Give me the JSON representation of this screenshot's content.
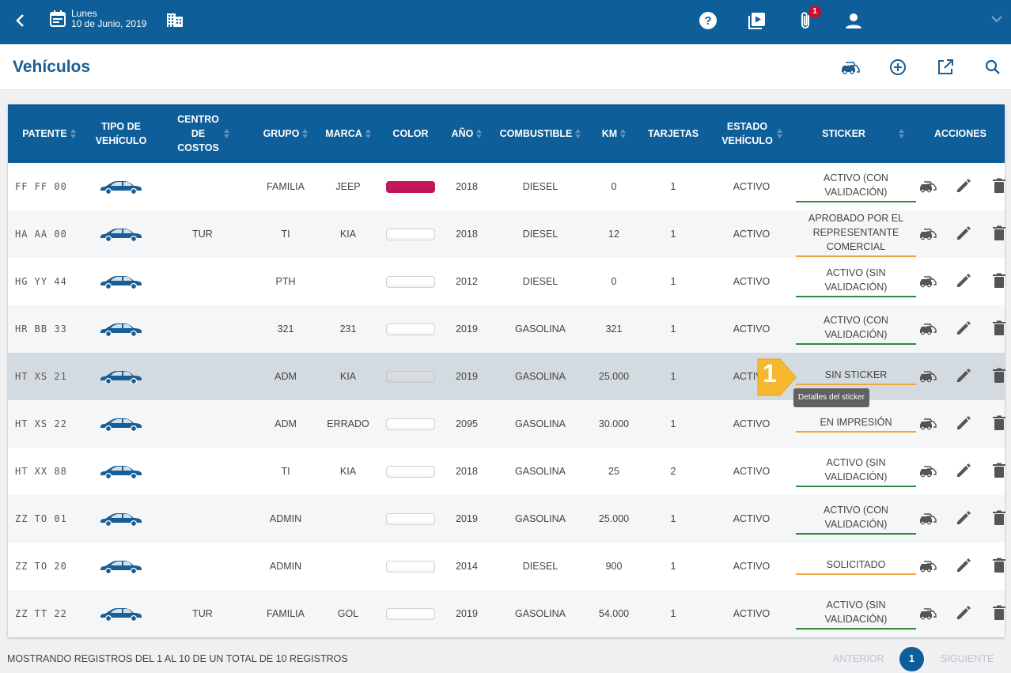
{
  "topbar": {
    "day": "Lunes",
    "date": "10 de Junio, 2019",
    "notification_count": "1"
  },
  "page": {
    "title": "Vehículos"
  },
  "table": {
    "headers": {
      "patente": "PATENTE",
      "tipo": "TIPO DE VEHÍCULO",
      "centro": "CENTRO DE COSTOS",
      "grupo": "GRUPO",
      "marca": "MARCA",
      "color": "COLOR",
      "anio": "AÑO",
      "combustible": "COMBUSTIBLE",
      "km": "KM",
      "tarjetas": "TARJETAS",
      "estado": "ESTADO VEHÍCULO",
      "sticker": "STICKER",
      "acciones": "ACCIONES"
    },
    "rows": [
      {
        "patente": "FF FF 00",
        "centro": "",
        "grupo": "FAMILIA",
        "marca": "JEEP",
        "color": "#c2185b",
        "anio": "2018",
        "combustible": "DIESEL",
        "km": "0",
        "tarjetas": "1",
        "estado": "ACTIVO",
        "sticker": "ACTIVO (CON VALIDACIÓN)",
        "sticker_status": "green"
      },
      {
        "patente": "HA AA 00",
        "centro": "TUR",
        "grupo": "TI",
        "marca": "KIA",
        "color": "#ffffff",
        "anio": "2018",
        "combustible": "DIESEL",
        "km": "12",
        "tarjetas": "1",
        "estado": "ACTIVO",
        "sticker": "APROBADO POR EL REPRESENTANTE COMERCIAL",
        "sticker_status": "orange"
      },
      {
        "patente": "HG YY 44",
        "centro": "",
        "grupo": "PTH",
        "marca": "",
        "color": "#ffffff",
        "anio": "2012",
        "combustible": "DIESEL",
        "km": "0",
        "tarjetas": "1",
        "estado": "ACTIVO",
        "sticker": "ACTIVO (SIN VALIDACIÓN)",
        "sticker_status": "green"
      },
      {
        "patente": "HR BB 33",
        "centro": "",
        "grupo": "321",
        "marca": "231",
        "color": "#ffffff",
        "anio": "2019",
        "combustible": "GASOLINA",
        "km": "321",
        "tarjetas": "1",
        "estado": "ACTIVO",
        "sticker": "ACTIVO (CON VALIDACIÓN)",
        "sticker_status": "green"
      },
      {
        "patente": "HT XS 21",
        "centro": "",
        "grupo": "ADM",
        "marca": "KIA",
        "color": "#ffffff",
        "anio": "2019",
        "combustible": "GASOLINA",
        "km": "25.000",
        "tarjetas": "1",
        "estado": "ACTIVO",
        "sticker": "SIN STICKER",
        "sticker_status": "orange",
        "highlighted": true
      },
      {
        "patente": "HT XS 22",
        "centro": "",
        "grupo": "ADM",
        "marca": "ERRADO",
        "color": "#ffffff",
        "anio": "2095",
        "combustible": "GASOLINA",
        "km": "30.000",
        "tarjetas": "1",
        "estado": "ACTIVO",
        "sticker": "EN IMPRESIÓN",
        "sticker_status": "orange"
      },
      {
        "patente": "HT XX 88",
        "centro": "",
        "grupo": "TI",
        "marca": "KIA",
        "color": "#ffffff",
        "anio": "2018",
        "combustible": "GASOLINA",
        "km": "25",
        "tarjetas": "2",
        "estado": "ACTIVO",
        "sticker": "ACTIVO (SIN VALIDACIÓN)",
        "sticker_status": "green"
      },
      {
        "patente": "ZZ TO 01",
        "centro": "",
        "grupo": "ADMIN",
        "marca": "",
        "color": "#ffffff",
        "anio": "2019",
        "combustible": "GASOLINA",
        "km": "25.000",
        "tarjetas": "1",
        "estado": "ACTIVO",
        "sticker": "ACTIVO (CON VALIDACIÓN)",
        "sticker_status": "green"
      },
      {
        "patente": "ZZ TO 20",
        "centro": "",
        "grupo": "ADMIN",
        "marca": "",
        "color": "#ffffff",
        "anio": "2014",
        "combustible": "DIESEL",
        "km": "900",
        "tarjetas": "1",
        "estado": "ACTIVO",
        "sticker": "SOLICITADO",
        "sticker_status": "orange"
      },
      {
        "patente": "ZZ TT 22",
        "centro": "TUR",
        "grupo": "FAMILIA",
        "marca": "GOL",
        "color": "#ffffff",
        "anio": "2019",
        "combustible": "GASOLINA",
        "km": "54.000",
        "tarjetas": "1",
        "estado": "ACTIVO",
        "sticker": "ACTIVO (SIN VALIDACIÓN)",
        "sticker_status": "green"
      }
    ]
  },
  "tooltip": {
    "text": "Detalles del sticker"
  },
  "step_marker": {
    "number": "1"
  },
  "footer": {
    "summary": "MOSTRANDO REGISTROS DEL 1 AL 10 DE UN TOTAL DE 10 REGISTROS",
    "prev": "ANTERIOR",
    "page": "1",
    "next": "SIGUIENTE"
  },
  "colors": {
    "primary": "#0d5e99",
    "status_green": "#2e8b3a",
    "status_orange": "#f4a53a",
    "badge_red": "#c8102e"
  },
  "icons": [
    "back-icon",
    "calendar-icon",
    "building-icon",
    "help-icon",
    "video-icon",
    "attachment-icon",
    "user-icon",
    "chevron-down-icon",
    "vehicles-icon",
    "add-icon",
    "export-icon",
    "search-icon",
    "car-icon",
    "vehicles-action-icon",
    "edit-icon",
    "delete-icon"
  ]
}
